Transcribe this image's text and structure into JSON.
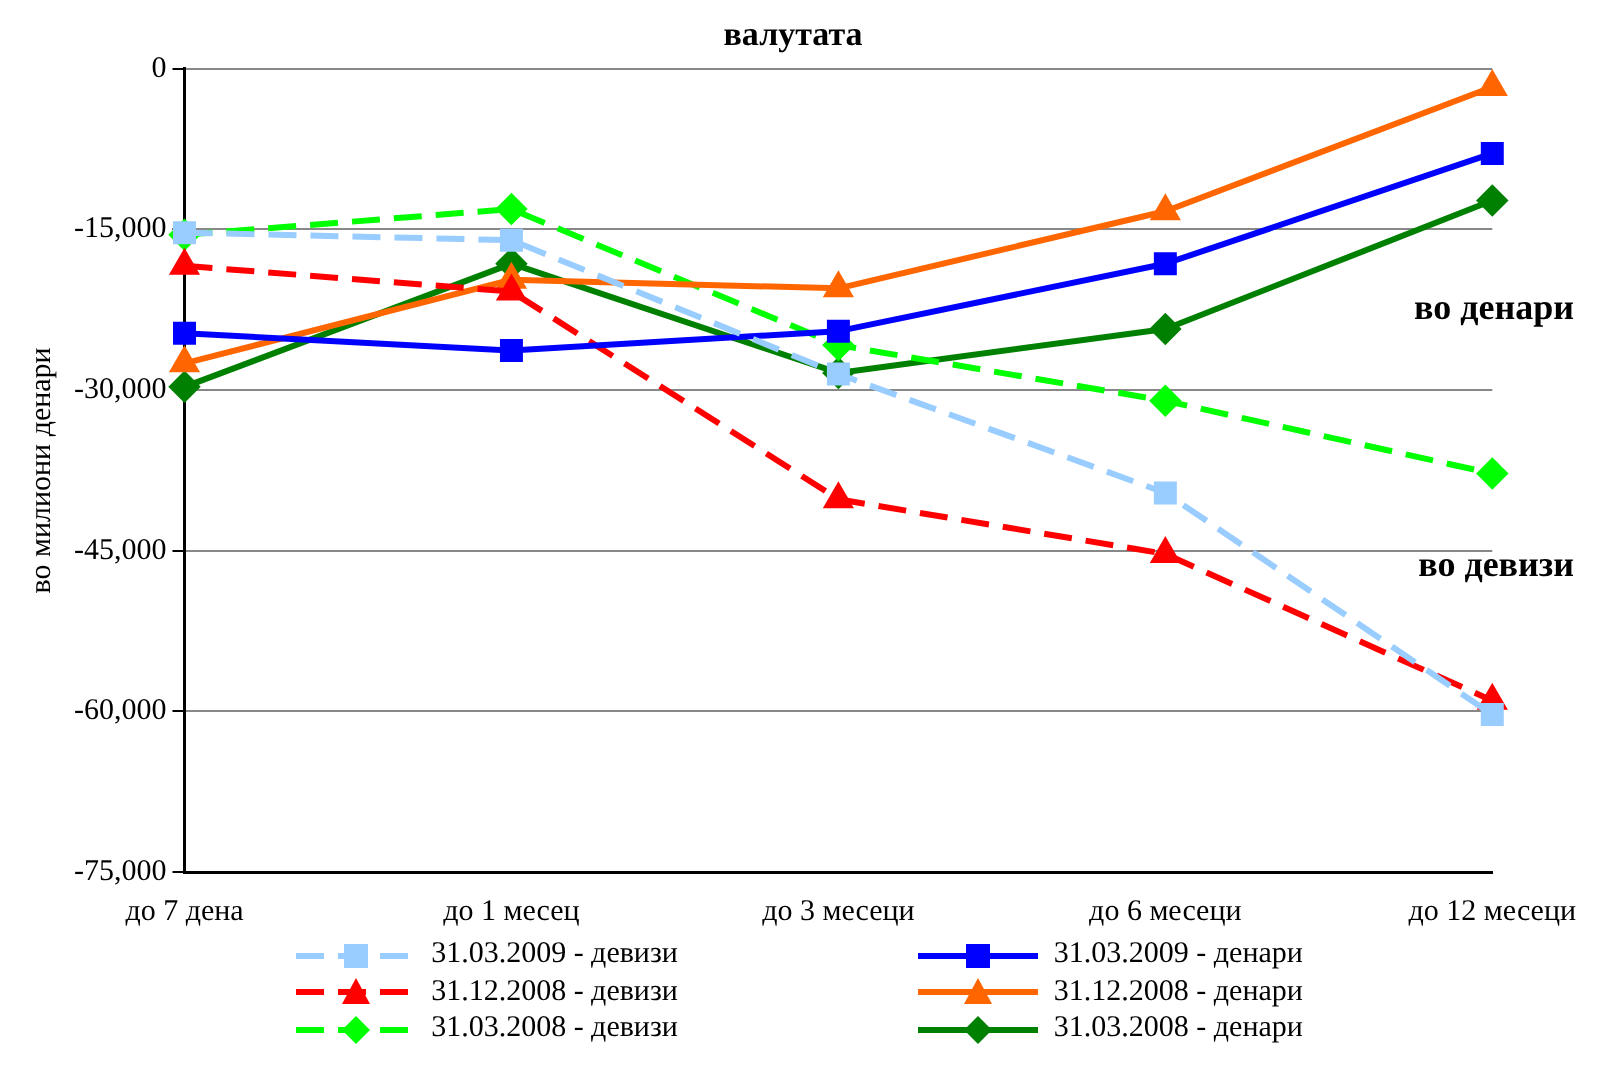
{
  "chart_data": {
    "type": "line",
    "title": "валутата",
    "ylabel": "во милиони денари",
    "categories": [
      "до 7 дена",
      "до 1 месец",
      "до 3 месеци",
      "до 6 месеци",
      "до 12 месеци"
    ],
    "series": [
      {
        "name": "31.03.2009 - девизи",
        "color": "#99ccff",
        "marker": "square",
        "line_style": "dashed",
        "values": [
          -15300,
          -16000,
          -28500,
          -39600,
          -60300
        ]
      },
      {
        "name": "31.03.2009 - денари",
        "color": "#0000ff",
        "marker": "square",
        "line_style": "solid",
        "values": [
          -24700,
          -26300,
          -24500,
          -18200,
          -7900
        ]
      },
      {
        "name": "31.12.2008 - девизи",
        "color": "#ff0000",
        "marker": "triangle",
        "line_style": "dashed",
        "values": [
          -18400,
          -20800,
          -40200,
          -45300,
          -59000
        ]
      },
      {
        "name": "31.12.2008 - денари",
        "color": "#ff6600",
        "marker": "triangle",
        "line_style": "solid",
        "values": [
          -27500,
          -19700,
          -20500,
          -13300,
          -1700
        ]
      },
      {
        "name": "31.03.2008 - девизи",
        "color": "#00ff00",
        "marker": "diamond",
        "line_style": "dashed",
        "values": [
          -15500,
          -13100,
          -25800,
          -31000,
          -37800
        ]
      },
      {
        "name": "31.03.2008 - денари",
        "color": "#008000",
        "marker": "diamond",
        "line_style": "solid",
        "values": [
          -29700,
          -18200,
          -28400,
          -24300,
          -12300
        ]
      }
    ],
    "annotations": [
      "во денари",
      "во девизи"
    ],
    "ylim": [
      -75000,
      0
    ],
    "yticks": [
      {
        "value": -75000,
        "label": "-75,000"
      },
      {
        "value": -60000,
        "label": "-60,000"
      },
      {
        "value": -45000,
        "label": "-45,000"
      },
      {
        "value": -30000,
        "label": "-30,000"
      },
      {
        "value": -15000,
        "label": "-15,000"
      },
      0
    ],
    "grid": "y",
    "legend": "bottom"
  }
}
